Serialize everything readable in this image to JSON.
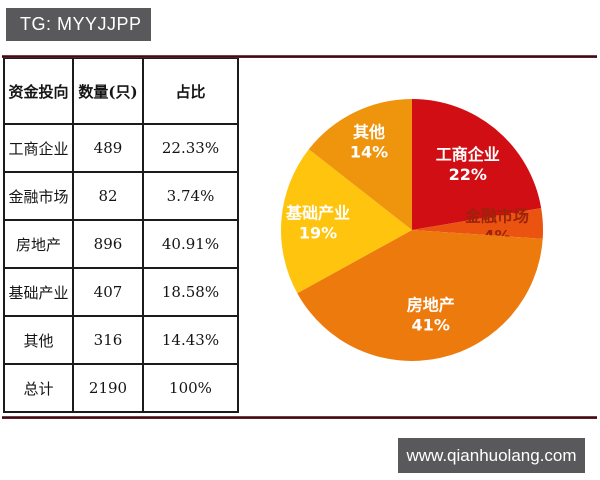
{
  "header": {
    "badge": "TG: MYYJJPP"
  },
  "footer": {
    "site": "www.qianhuolang.com"
  },
  "table": {
    "headers": [
      "资金投向",
      "数量(只)",
      "占比"
    ],
    "rows": [
      [
        "工商企业",
        "489",
        "22.33%"
      ],
      [
        "金融市场",
        "82",
        "3.74%"
      ],
      [
        "房地产",
        "896",
        "40.91%"
      ],
      [
        "基础产业",
        "407",
        "18.58%"
      ],
      [
        "其他",
        "316",
        "14.43%"
      ],
      [
        "总计",
        "2190",
        "100%"
      ]
    ]
  },
  "chart_data": {
    "type": "pie",
    "title": "",
    "categories": [
      "工商企业",
      "金融市场",
      "房地产",
      "基础产业",
      "其他"
    ],
    "values": [
      22.33,
      3.74,
      40.91,
      18.58,
      14.43
    ],
    "display_pcts": [
      "22%",
      "4%",
      "41%",
      "19%",
      "14%"
    ],
    "colors": [
      "#d10e14",
      "#ea5410",
      "#ed7a0d",
      "#ffc40d",
      "#ee940d"
    ],
    "label_colors": [
      "#ffffff",
      "#9e2209",
      "#ffffff",
      "#ffffff",
      "#ffffff"
    ],
    "label_radius": [
      0.66,
      0.65,
      0.66,
      0.72,
      0.75
    ],
    "start_angle_deg": 0,
    "direction": "clockwise",
    "legend_position": "none",
    "labels_on_slices": true
  },
  "colors": {
    "badge_bg": "#59595b",
    "badge_text": "#ffffff",
    "divider": "#4d1219",
    "table_border": "#1b1b1b",
    "page_bg": "#ffffff"
  }
}
